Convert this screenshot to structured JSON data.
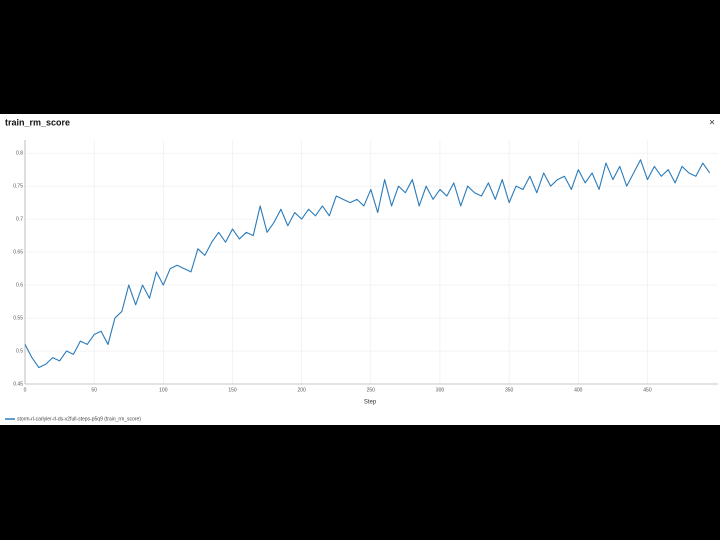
{
  "chart_data": {
    "type": "line",
    "title": "train_rm_score",
    "x_label": "Step",
    "close_label": "×",
    "x": [
      0,
      5,
      10,
      15,
      20,
      25,
      30,
      35,
      40,
      45,
      50,
      55,
      60,
      65,
      70,
      75,
      80,
      85,
      90,
      95,
      100,
      105,
      110,
      115,
      120,
      125,
      130,
      135,
      140,
      145,
      150,
      155,
      160,
      165,
      170,
      175,
      180,
      185,
      190,
      195,
      200,
      205,
      210,
      215,
      220,
      225,
      230,
      235,
      240,
      245,
      250,
      255,
      260,
      265,
      270,
      275,
      280,
      285,
      290,
      295,
      300,
      305,
      310,
      315,
      320,
      325,
      330,
      335,
      340,
      345,
      350,
      355,
      360,
      365,
      370,
      375,
      380,
      385,
      390,
      395,
      400,
      405,
      410,
      415,
      420,
      425,
      430,
      435,
      440,
      445,
      450,
      455,
      460,
      465,
      470,
      475,
      480,
      485,
      490,
      495
    ],
    "series": [
      {
        "name": "storm-rl-carlyler-rl-ds-v2full-steps-p5q9 (train_rm_score)",
        "color": "#2b7bba",
        "values": [
          0.51,
          0.49,
          0.475,
          0.48,
          0.49,
          0.485,
          0.5,
          0.495,
          0.515,
          0.51,
          0.525,
          0.53,
          0.51,
          0.55,
          0.56,
          0.6,
          0.57,
          0.6,
          0.58,
          0.62,
          0.6,
          0.625,
          0.63,
          0.625,
          0.62,
          0.655,
          0.645,
          0.665,
          0.68,
          0.665,
          0.685,
          0.67,
          0.68,
          0.675,
          0.72,
          0.68,
          0.695,
          0.715,
          0.69,
          0.71,
          0.7,
          0.715,
          0.705,
          0.72,
          0.705,
          0.735,
          0.73,
          0.725,
          0.73,
          0.72,
          0.745,
          0.71,
          0.76,
          0.72,
          0.75,
          0.74,
          0.76,
          0.72,
          0.75,
          0.73,
          0.745,
          0.735,
          0.755,
          0.72,
          0.75,
          0.74,
          0.735,
          0.755,
          0.73,
          0.76,
          0.725,
          0.75,
          0.745,
          0.765,
          0.74,
          0.77,
          0.75,
          0.76,
          0.765,
          0.745,
          0.775,
          0.755,
          0.77,
          0.745,
          0.785,
          0.76,
          0.78,
          0.75,
          0.77,
          0.79,
          0.76,
          0.78,
          0.765,
          0.775,
          0.755,
          0.78,
          0.77,
          0.765,
          0.785,
          0.77
        ]
      }
    ],
    "xlim": [
      0,
      501
    ],
    "ylim": [
      0.45,
      0.82
    ],
    "xticks": [
      0,
      50,
      100,
      150,
      200,
      250,
      300,
      350,
      400,
      450
    ],
    "yticks": [
      0.45,
      0.5,
      0.55,
      0.6,
      0.65,
      0.7,
      0.75,
      0.8
    ],
    "grid": true
  }
}
